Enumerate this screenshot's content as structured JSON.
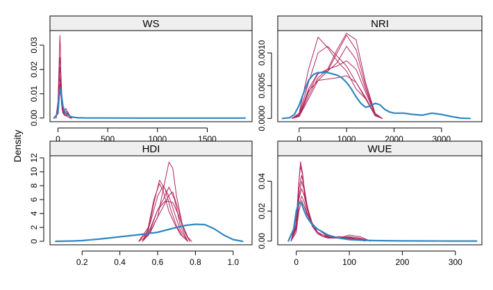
{
  "figure": {
    "ylabel": "Density"
  },
  "colors": {
    "observed": "#2E86C1",
    "imputed": "#B0255A",
    "strip_bg": "#EFEFEF",
    "frame": "#000000"
  },
  "chart_data": [
    {
      "type": "line",
      "title": "WS",
      "xlim": [
        -80,
        1950
      ],
      "ylim": [
        -0.0015,
        0.036
      ],
      "xticks": [
        0,
        500,
        1000,
        1500
      ],
      "xtick_labels": [
        "0",
        "500",
        "1000",
        "1500"
      ],
      "yticks": [
        0,
        0.01,
        0.02,
        0.03
      ],
      "ytick_labels": [
        "0.00",
        "0.01",
        "0.02",
        "0.03"
      ],
      "series": [
        {
          "role": "observed",
          "x": [
            -40,
            0,
            10,
            20,
            30,
            40,
            50,
            70,
            100,
            130,
            160,
            200,
            300,
            500,
            800,
            1200,
            1600,
            1880
          ],
          "y": [
            0,
            0.002,
            0.008,
            0.012,
            0.011,
            0.008,
            0.005,
            0.0025,
            0.0012,
            0.0006,
            0.0003,
            0.0001,
            3e-05,
            1e-05,
            0,
            0,
            0,
            0
          ]
        },
        {
          "role": "imputed",
          "x": [
            -20,
            0,
            10,
            20,
            25,
            30,
            40,
            50,
            60,
            80,
            100,
            120,
            140
          ],
          "y": [
            0,
            0.004,
            0.02,
            0.034,
            0.028,
            0.012,
            0.004,
            0.002,
            0.003,
            0.002,
            0.002,
            0.0005,
            0
          ]
        },
        {
          "role": "imputed",
          "x": [
            -20,
            0,
            10,
            20,
            30,
            40,
            50,
            60,
            80,
            100,
            120,
            140
          ],
          "y": [
            0,
            0.006,
            0.018,
            0.025,
            0.018,
            0.008,
            0.003,
            0.002,
            0.004,
            0.002,
            0.0004,
            0
          ]
        },
        {
          "role": "imputed",
          "x": [
            -20,
            0,
            10,
            20,
            30,
            40,
            50,
            70,
            90,
            110,
            130
          ],
          "y": [
            0,
            0.005,
            0.015,
            0.021,
            0.015,
            0.006,
            0.002,
            0.002,
            0.003,
            0.001,
            0
          ]
        },
        {
          "role": "imputed",
          "x": [
            -20,
            0,
            10,
            20,
            30,
            40,
            60,
            80,
            100,
            130
          ],
          "y": [
            0,
            0.007,
            0.016,
            0.016,
            0.011,
            0.005,
            0.002,
            0.001,
            0.0025,
            0
          ]
        },
        {
          "role": "imputed",
          "x": [
            -20,
            0,
            10,
            15,
            25,
            35,
            50,
            70,
            100,
            130
          ],
          "y": [
            0,
            0.004,
            0.012,
            0.018,
            0.013,
            0.006,
            0.002,
            0.001,
            0.002,
            0
          ]
        },
        {
          "role": "imputed",
          "x": [
            -20,
            0,
            10,
            20,
            30,
            40,
            60,
            80,
            110,
            140
          ],
          "y": [
            0,
            0.003,
            0.01,
            0.014,
            0.012,
            0.006,
            0.002,
            0.001,
            0.0015,
            0
          ]
        },
        {
          "role": "imputed",
          "x": [
            -20,
            0,
            10,
            20,
            30,
            45,
            60,
            80,
            120
          ],
          "y": [
            0,
            0.003,
            0.008,
            0.011,
            0.009,
            0.004,
            0.002,
            0.001,
            0
          ]
        }
      ]
    },
    {
      "type": "line",
      "title": "NRI",
      "xlim": [
        -450,
        3850
      ],
      "ylim": [
        -5e-05,
        0.00134
      ],
      "xticks": [
        0,
        1000,
        2000,
        3000
      ],
      "xtick_labels": [
        "0",
        "1000",
        "2000",
        "3000"
      ],
      "yticks": [
        0,
        0.0005,
        0.001
      ],
      "ytick_labels": [
        "0.0000",
        "0.0005",
        "0.0010"
      ],
      "series": [
        {
          "role": "observed",
          "x": [
            -350,
            -200,
            -100,
            0,
            100,
            200,
            300,
            400,
            500,
            600,
            700,
            800,
            900,
            1000,
            1100,
            1200,
            1300,
            1400,
            1500,
            1600,
            1700,
            1800,
            1900,
            2000,
            2200,
            2400,
            2600,
            2800,
            3000,
            3200,
            3400,
            3600
          ],
          "y": [
            0,
            1e-05,
            6e-05,
            0.0002,
            0.0004,
            0.00058,
            0.00067,
            0.0007,
            0.0007,
            0.0007,
            0.00068,
            0.00066,
            0.00062,
            0.00055,
            0.00045,
            0.00033,
            0.00023,
            0.00017,
            0.00019,
            0.00023,
            0.00021,
            0.00014,
            0.0001,
            8e-05,
            8e-05,
            6e-05,
            5e-05,
            8e-05,
            6e-05,
            3e-05,
            5e-06,
            0
          ]
        },
        {
          "role": "imputed",
          "x": [
            -150,
            0,
            200,
            400,
            600,
            800,
            1000,
            1200,
            1400,
            1600,
            1750
          ],
          "y": [
            0,
            8e-05,
            0.00075,
            0.00124,
            0.00108,
            0.00088,
            0.00072,
            0.00045,
            0.0003,
            5e-05,
            0
          ]
        },
        {
          "role": "imputed",
          "x": [
            -150,
            0,
            200,
            400,
            600,
            800,
            1000,
            1200,
            1400,
            1600,
            1750
          ],
          "y": [
            0,
            6e-05,
            0.00055,
            0.001,
            0.0011,
            0.00095,
            0.0008,
            0.00055,
            0.00032,
            5e-05,
            0
          ]
        },
        {
          "role": "imputed",
          "x": [
            -150,
            0,
            200,
            400,
            600,
            800,
            1000,
            1200,
            1400,
            1600,
            1750
          ],
          "y": [
            0,
            3e-05,
            0.00035,
            0.00062,
            0.00075,
            0.00105,
            0.0013,
            0.0012,
            0.00055,
            8e-05,
            0
          ]
        },
        {
          "role": "imputed",
          "x": [
            -150,
            0,
            200,
            400,
            600,
            800,
            1000,
            1200,
            1400,
            1600,
            1750
          ],
          "y": [
            0,
            3e-05,
            0.0003,
            0.00058,
            0.00072,
            0.001,
            0.00127,
            0.00105,
            0.0005,
            6e-05,
            0
          ]
        },
        {
          "role": "imputed",
          "x": [
            -150,
            0,
            200,
            400,
            600,
            800,
            1000,
            1200,
            1400,
            1600,
            1750
          ],
          "y": [
            0,
            4e-05,
            0.00045,
            0.0007,
            0.00072,
            0.00085,
            0.0011,
            0.0009,
            0.00045,
            6e-05,
            0
          ]
        },
        {
          "role": "imputed",
          "x": [
            -150,
            0,
            200,
            400,
            600,
            800,
            1000,
            1200,
            1400,
            1600,
            1750
          ],
          "y": [
            0,
            4e-05,
            0.0004,
            0.00068,
            0.00075,
            0.0008,
            0.00088,
            0.00075,
            0.0004,
            6e-05,
            0
          ]
        },
        {
          "role": "imputed",
          "x": [
            -150,
            0,
            200,
            400,
            600,
            800,
            1000,
            1200,
            1400,
            1600,
            1750
          ],
          "y": [
            0,
            5e-05,
            0.00042,
            0.00058,
            0.0006,
            0.00062,
            0.00065,
            0.00055,
            0.0003,
            4e-05,
            0
          ]
        }
      ]
    },
    {
      "type": "line",
      "title": "HDI",
      "xlim": [
        0.03,
        1.1
      ],
      "ylim": [
        -0.5,
        12.3
      ],
      "xticks": [
        0.2,
        0.4,
        0.6,
        0.8,
        1.0
      ],
      "xtick_labels": [
        "0.2",
        "0.4",
        "0.6",
        "0.8",
        "1.0"
      ],
      "yticks": [
        0,
        2,
        4,
        6,
        8,
        10,
        12
      ],
      "ytick_labels": [
        "0",
        "2",
        "4",
        "6",
        "8",
        "10",
        "12"
      ],
      "series": [
        {
          "role": "observed",
          "x": [
            0.06,
            0.15,
            0.2,
            0.3,
            0.4,
            0.5,
            0.6,
            0.7,
            0.75,
            0.8,
            0.85,
            0.9,
            0.95,
            1.0,
            1.05
          ],
          "y": [
            0,
            0.05,
            0.1,
            0.35,
            0.65,
            0.95,
            1.3,
            2.0,
            2.3,
            2.45,
            2.4,
            1.8,
            0.9,
            0.25,
            0
          ]
        },
        {
          "role": "imputed",
          "x": [
            0.5,
            0.55,
            0.6,
            0.63,
            0.66,
            0.68,
            0.7,
            0.73,
            0.76,
            0.78
          ],
          "y": [
            0,
            0.8,
            3.5,
            7.5,
            11.4,
            10.5,
            6.5,
            2.5,
            0.6,
            0
          ]
        },
        {
          "role": "imputed",
          "x": [
            0.5,
            0.55,
            0.58,
            0.61,
            0.64,
            0.67,
            0.7,
            0.73,
            0.76
          ],
          "y": [
            0,
            1.5,
            5.5,
            8.8,
            7.5,
            4.5,
            2.2,
            0.8,
            0
          ]
        },
        {
          "role": "imputed",
          "x": [
            0.5,
            0.55,
            0.58,
            0.61,
            0.63,
            0.66,
            0.69,
            0.72,
            0.76
          ],
          "y": [
            0,
            2,
            6,
            8.3,
            7.2,
            4.3,
            2.5,
            1,
            0
          ]
        },
        {
          "role": "imputed",
          "x": [
            0.52,
            0.56,
            0.6,
            0.63,
            0.66,
            0.69,
            0.72,
            0.76
          ],
          "y": [
            0,
            2.5,
            6.5,
            8,
            6.5,
            4,
            1.6,
            0
          ]
        },
        {
          "role": "imputed",
          "x": [
            0.52,
            0.56,
            0.6,
            0.63,
            0.66,
            0.69,
            0.72,
            0.76
          ],
          "y": [
            0,
            1.5,
            4.5,
            6,
            7.8,
            6,
            2.2,
            0
          ]
        },
        {
          "role": "imputed",
          "x": [
            0.52,
            0.56,
            0.6,
            0.63,
            0.66,
            0.68,
            0.71,
            0.74,
            0.77
          ],
          "y": [
            0,
            1.2,
            3.5,
            5,
            6.6,
            7.1,
            4.5,
            1.5,
            0
          ]
        },
        {
          "role": "imputed",
          "x": [
            0.52,
            0.56,
            0.6,
            0.64,
            0.68,
            0.71,
            0.74,
            0.77
          ],
          "y": [
            0,
            1.8,
            4.5,
            5.8,
            5.6,
            3.8,
            1.5,
            0
          ]
        }
      ]
    },
    {
      "type": "line",
      "title": "WUE",
      "xlim": [
        -35,
        350
      ],
      "ylim": [
        -0.0025,
        0.057
      ],
      "xticks": [
        0,
        100,
        200,
        300
      ],
      "xtick_labels": [
        "0",
        "100",
        "200",
        "300"
      ],
      "yticks": [
        0,
        0.02,
        0.04
      ],
      "ytick_labels": [
        "0.00",
        "0.02",
        "0.04"
      ],
      "series": [
        {
          "role": "observed",
          "x": [
            -15,
            -5,
            0,
            5,
            10,
            15,
            20,
            30,
            40,
            50,
            60,
            80,
            100,
            120,
            150,
            200,
            250,
            300,
            340
          ],
          "y": [
            0,
            0.008,
            0.02,
            0.026,
            0.025,
            0.02,
            0.016,
            0.011,
            0.008,
            0.006,
            0.004,
            0.002,
            0.001,
            0.0006,
            0.0003,
            0.0001,
            5e-05,
            2e-05,
            0
          ]
        },
        {
          "role": "imputed",
          "x": [
            -10,
            0,
            5,
            8,
            12,
            15,
            20,
            25,
            30,
            40,
            50,
            60,
            80,
            100,
            120,
            140
          ],
          "y": [
            0,
            0.01,
            0.04,
            0.053,
            0.045,
            0.035,
            0.025,
            0.016,
            0.012,
            0.006,
            0.004,
            0.002,
            0.002,
            0.001,
            0.001,
            0
          ]
        },
        {
          "role": "imputed",
          "x": [
            -10,
            0,
            5,
            8,
            12,
            15,
            20,
            25,
            30,
            40,
            50,
            60,
            80,
            100,
            120,
            140
          ],
          "y": [
            0,
            0.015,
            0.04,
            0.05,
            0.044,
            0.032,
            0.022,
            0.015,
            0.01,
            0.005,
            0.003,
            0.002,
            0.003,
            0.0025,
            0.0012,
            0
          ]
        },
        {
          "role": "imputed",
          "x": [
            -10,
            0,
            5,
            10,
            15,
            20,
            25,
            30,
            40,
            50,
            60,
            80,
            100,
            120,
            140
          ],
          "y": [
            0,
            0.012,
            0.035,
            0.044,
            0.036,
            0.024,
            0.016,
            0.01,
            0.005,
            0.003,
            0.002,
            0.002,
            0.004,
            0.003,
            0
          ]
        },
        {
          "role": "imputed",
          "x": [
            -10,
            0,
            5,
            10,
            15,
            20,
            30,
            40,
            50,
            60,
            80,
            100,
            120,
            140
          ],
          "y": [
            0,
            0.01,
            0.03,
            0.04,
            0.034,
            0.024,
            0.012,
            0.006,
            0.004,
            0.003,
            0.002,
            0.003,
            0.002,
            0
          ]
        },
        {
          "role": "imputed",
          "x": [
            -10,
            0,
            5,
            10,
            15,
            20,
            30,
            40,
            50,
            60,
            80,
            100,
            120,
            140
          ],
          "y": [
            0,
            0.009,
            0.028,
            0.035,
            0.03,
            0.022,
            0.011,
            0.006,
            0.003,
            0.002,
            0.003,
            0.002,
            0.0015,
            0
          ]
        },
        {
          "role": "imputed",
          "x": [
            -10,
            0,
            5,
            10,
            15,
            20,
            30,
            40,
            55,
            70,
            90,
            110,
            130
          ],
          "y": [
            0,
            0.008,
            0.024,
            0.03,
            0.026,
            0.019,
            0.01,
            0.006,
            0.003,
            0.002,
            0.002,
            0.0015,
            0
          ]
        },
        {
          "role": "imputed",
          "x": [
            -10,
            0,
            5,
            10,
            15,
            20,
            30,
            40,
            55,
            70,
            90,
            110,
            130
          ],
          "y": [
            0,
            0.006,
            0.02,
            0.027,
            0.023,
            0.018,
            0.012,
            0.008,
            0.004,
            0.002,
            0.002,
            0.001,
            0
          ]
        }
      ]
    }
  ]
}
